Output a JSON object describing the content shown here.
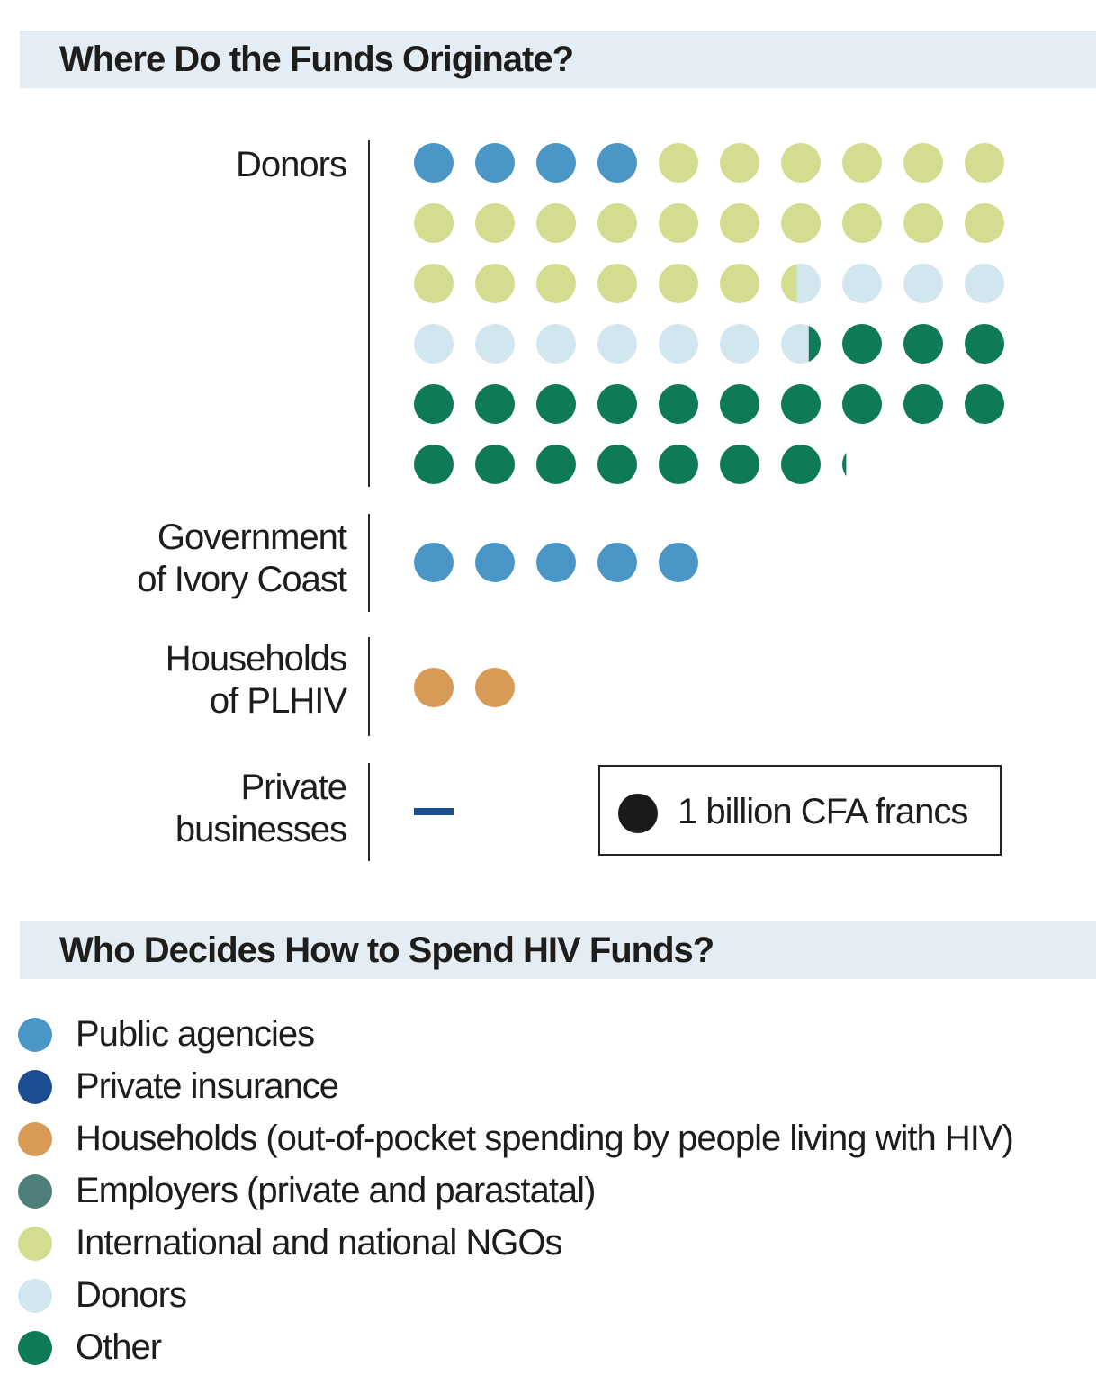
{
  "chart_data": {
    "type": "dot-matrix",
    "title": "Where Do the Funds Originate?",
    "unit_label": "1 billion CFA francs",
    "categories": [
      {
        "label_lines": [
          "Donors"
        ],
        "segments": [
          {
            "agent": "Public agencies",
            "value": 4
          },
          {
            "agent": "International and national NGOs",
            "value": 22.4
          },
          {
            "agent": "Donors",
            "value": 10.3
          },
          {
            "agent": "Other",
            "value": 20.4
          }
        ]
      },
      {
        "label_lines": [
          "Government",
          "of Ivory Coast"
        ],
        "segments": [
          {
            "agent": "Public agencies",
            "value": 5
          }
        ]
      },
      {
        "label_lines": [
          "Households",
          "of PLHIV"
        ],
        "segments": [
          {
            "agent": "Households (out-of-pocket spending by people living with HIV)",
            "value": 2
          }
        ]
      },
      {
        "label_lines": [
          "Private",
          "businesses"
        ],
        "segments": [
          {
            "agent": "Private insurance",
            "value": 0.1
          }
        ]
      }
    ]
  },
  "section2": {
    "title": "Who Decides How to Spend HIV Funds?"
  },
  "legend": [
    {
      "label": "Public agencies",
      "color": "#4a97c7"
    },
    {
      "label": "Private insurance",
      "color": "#1c4d91"
    },
    {
      "label": "Households (out-of-pocket spending by people living with HIV)",
      "color": "#d89a57"
    },
    {
      "label": "Employers (private and parastatal)",
      "color": "#4e7f7a"
    },
    {
      "label": "International and national NGOs",
      "color": "#d3dc8f"
    },
    {
      "label": "Donors",
      "color": "#d2e6ef"
    },
    {
      "label": "Other",
      "color": "#0f7a58"
    }
  ],
  "key_color": "#1a1a1a"
}
